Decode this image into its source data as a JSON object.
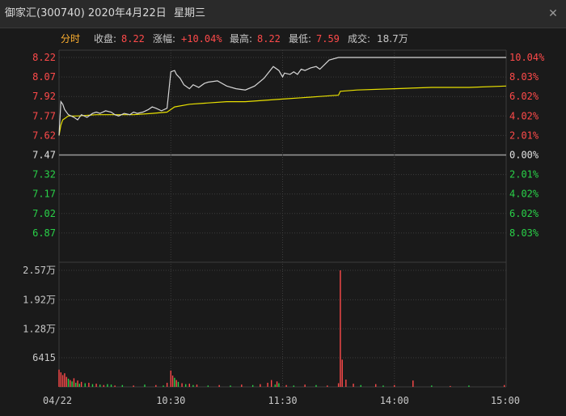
{
  "window": {
    "title": "御家汇(300740) 2020年4月22日",
    "weekday": "星期三",
    "close_icon": "close-icon"
  },
  "stats": {
    "mode": "分时",
    "close_label": "收盘:",
    "close_value": "8.22",
    "change_label": "涨幅:",
    "change_value": "+10.04%",
    "high_label": "最高:",
    "high_value": "8.22",
    "low_label": "最低:",
    "low_value": "7.59",
    "volume_label": "成交:",
    "volume_value": "18.7万"
  },
  "colors": {
    "up": "#ff4a4a",
    "down": "#29d148",
    "neutral": "#e0e0e0",
    "price_line": "#d6d6d6",
    "avg_line": "#e8e000",
    "grid": "#3c3c3c"
  },
  "chart_data": {
    "type": "line",
    "title": "",
    "price_axis_left": [
      "8.22",
      "8.07",
      "7.92",
      "7.77",
      "7.62",
      "7.47",
      "7.32",
      "7.17",
      "7.02",
      "6.87"
    ],
    "price_axis_right": [
      "10.04%",
      "8.03%",
      "6.02%",
      "4.02%",
      "2.01%",
      "0.00%",
      "2.01%",
      "4.02%",
      "6.02%",
      "8.03%"
    ],
    "ylim": [
      6.72,
      8.22
    ],
    "prev_close": 7.47,
    "x_ticks": [
      "04/22",
      "10:30",
      "11:30",
      "14:00",
      "15:00"
    ],
    "volume_axis": [
      "2.57万",
      "1.92万",
      "1.28万",
      "6415"
    ],
    "volume_max": 25700,
    "series": [
      {
        "key": "price",
        "x": [
          0,
          1,
          2,
          3,
          5,
          8,
          10,
          12,
          15,
          18,
          20,
          22,
          25,
          28,
          30,
          32,
          35,
          38,
          40,
          42,
          45,
          48,
          50,
          52,
          55,
          58,
          60,
          62,
          63,
          65,
          67,
          70,
          72,
          75,
          78,
          80,
          85,
          90,
          95,
          100,
          105,
          110,
          115,
          118,
          120,
          121,
          124,
          126,
          128,
          130,
          132,
          135,
          138,
          140,
          145,
          150,
          155,
          160,
          165,
          170,
          175,
          180,
          185,
          190,
          195,
          200,
          205,
          210,
          215,
          220,
          225,
          230,
          235,
          240
        ],
        "values": [
          7.62,
          7.88,
          7.86,
          7.82,
          7.78,
          7.76,
          7.74,
          7.78,
          7.76,
          7.79,
          7.8,
          7.79,
          7.81,
          7.8,
          7.78,
          7.77,
          7.79,
          7.78,
          7.8,
          7.79,
          7.8,
          7.82,
          7.84,
          7.83,
          7.81,
          7.83,
          8.11,
          8.12,
          8.09,
          8.06,
          8.01,
          7.98,
          8.01,
          7.99,
          8.02,
          8.03,
          8.04,
          8.0,
          7.98,
          7.97,
          8.0,
          8.06,
          8.15,
          8.12,
          8.07,
          8.1,
          8.09,
          8.11,
          8.09,
          8.13,
          8.12,
          8.14,
          8.15,
          8.13,
          8.2,
          8.22,
          8.22,
          8.22,
          8.22,
          8.22,
          8.22,
          8.22,
          8.22,
          8.22,
          8.22,
          8.22,
          8.22,
          8.22,
          8.22,
          8.22,
          8.22,
          8.22,
          8.22,
          8.22
        ]
      },
      {
        "key": "average",
        "x": [
          0,
          1,
          2,
          5,
          10,
          20,
          30,
          40,
          50,
          58,
          60,
          62,
          70,
          80,
          90,
          100,
          110,
          120,
          130,
          140,
          150,
          151,
          160,
          180,
          200,
          220,
          240
        ],
        "values": [
          7.62,
          7.7,
          7.74,
          7.77,
          7.77,
          7.78,
          7.78,
          7.78,
          7.79,
          7.8,
          7.82,
          7.84,
          7.86,
          7.87,
          7.88,
          7.88,
          7.89,
          7.9,
          7.91,
          7.92,
          7.93,
          7.96,
          7.97,
          7.98,
          7.99,
          7.99,
          8.0
        ]
      }
    ],
    "volume": {
      "x": [
        0,
        1,
        2,
        3,
        4,
        5,
        6,
        7,
        8,
        9,
        10,
        11,
        12,
        14,
        16,
        18,
        20,
        22,
        24,
        26,
        28,
        30,
        34,
        40,
        46,
        52,
        56,
        58,
        60,
        61,
        62,
        63,
        64,
        66,
        68,
        70,
        72,
        74,
        80,
        86,
        92,
        98,
        104,
        108,
        112,
        114,
        116,
        117,
        118,
        122,
        126,
        132,
        138,
        144,
        150,
        151,
        152,
        154,
        158,
        162,
        170,
        174,
        180,
        190,
        200,
        210,
        220,
        239
      ],
      "values": [
        3800,
        3200,
        2600,
        3000,
        2200,
        1800,
        1500,
        1200,
        1900,
        900,
        1400,
        700,
        1100,
        800,
        900,
        600,
        700,
        500,
        400,
        600,
        500,
        300,
        400,
        300,
        500,
        400,
        300,
        900,
        3600,
        2500,
        2000,
        1500,
        1100,
        800,
        600,
        700,
        400,
        500,
        300,
        400,
        300,
        500,
        400,
        600,
        900,
        1500,
        500,
        1200,
        800,
        400,
        300,
        500,
        400,
        300,
        800,
        25700,
        6000,
        1600,
        700,
        400,
        600,
        300,
        400,
        1400,
        300,
        200,
        300,
        400
      ],
      "colors": [
        "up",
        "up",
        "up",
        "up",
        "up",
        "down",
        "up",
        "down",
        "up",
        "down",
        "up",
        "down",
        "up",
        "down",
        "up",
        "down",
        "up",
        "down",
        "up",
        "down",
        "down",
        "up",
        "down",
        "up",
        "down",
        "up",
        "down",
        "up",
        "up",
        "up",
        "down",
        "up",
        "down",
        "up",
        "down",
        "up",
        "down",
        "up",
        "down",
        "up",
        "down",
        "up",
        "down",
        "up",
        "up",
        "up",
        "down",
        "up",
        "down",
        "up",
        "down",
        "up",
        "down",
        "up",
        "up",
        "up",
        "up",
        "up",
        "up",
        "down",
        "up",
        "down",
        "up",
        "up",
        "down",
        "up",
        "down",
        "up"
      ]
    }
  }
}
